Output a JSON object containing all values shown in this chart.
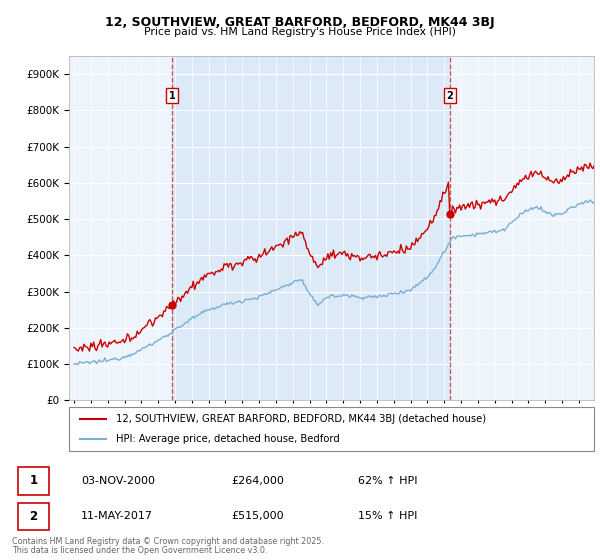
{
  "title": "12, SOUTHVIEW, GREAT BARFORD, BEDFORD, MK44 3BJ",
  "subtitle": "Price paid vs. HM Land Registry's House Price Index (HPI)",
  "legend_line1": "12, SOUTHVIEW, GREAT BARFORD, BEDFORD, MK44 3BJ (detached house)",
  "legend_line2": "HPI: Average price, detached house, Bedford",
  "marker1_date": "03-NOV-2000",
  "marker1_price": 264000,
  "marker1_label": "62% ↑ HPI",
  "marker2_date": "11-MAY-2017",
  "marker2_price": 515000,
  "marker2_label": "15% ↑ HPI",
  "footer_line1": "Contains HM Land Registry data © Crown copyright and database right 2025.",
  "footer_line2": "This data is licensed under the Open Government Licence v3.0.",
  "house_color": "#cc0000",
  "hpi_color": "#7ab0d4",
  "shade_color": "#ddeeff",
  "marker_vline_color": "#cc0000",
  "background_color": "#ffffff",
  "chart_bg_color": "#eef4fb",
  "ylim_min": 0,
  "ylim_max": 950000,
  "year_start": 1995,
  "year_end": 2026,
  "sale1_year": 2000.833,
  "sale2_year": 2017.333,
  "sale1_price": 264000,
  "sale2_price": 515000
}
